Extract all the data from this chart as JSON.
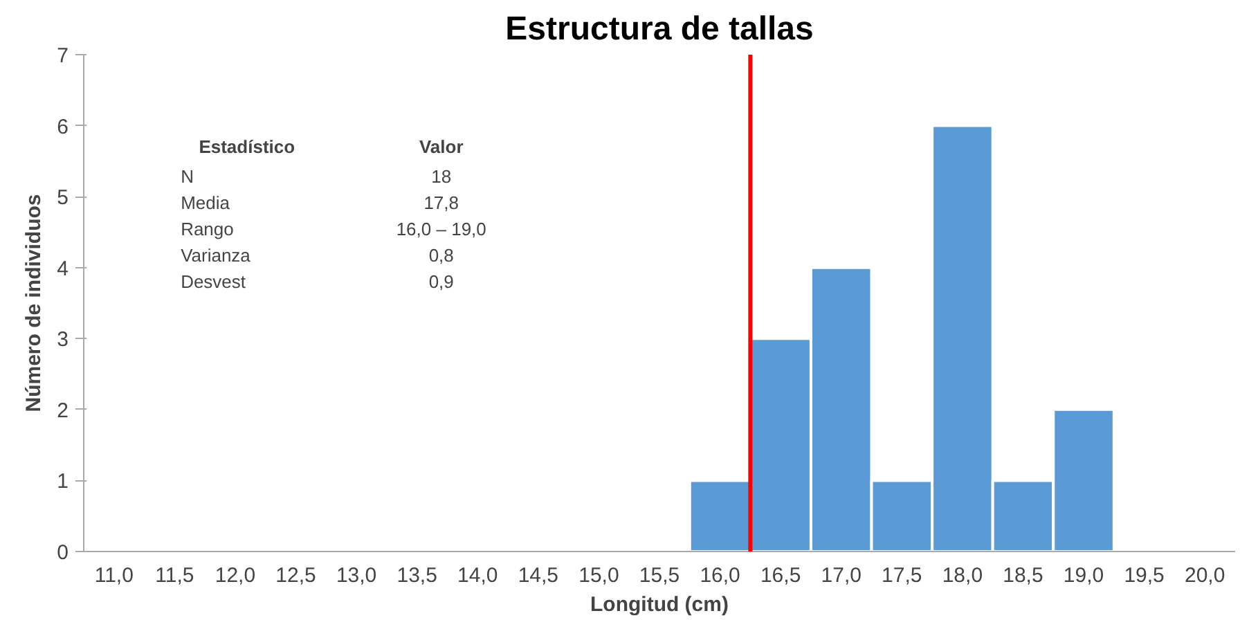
{
  "chart_data": {
    "type": "bar",
    "title": "Estructura de tallas",
    "xlabel": "Longitud (cm)",
    "ylabel": "Número de individuos",
    "x": [
      16.0,
      16.5,
      17.0,
      17.5,
      18.0,
      18.5,
      19.0
    ],
    "values": [
      1,
      3,
      4,
      1,
      6,
      1,
      2
    ],
    "color": "#5b9bd5",
    "xlim": [
      10.75,
      20.25
    ],
    "xticks": [
      {
        "value": 11.0,
        "label": "11,0"
      },
      {
        "value": 11.5,
        "label": "11,5"
      },
      {
        "value": 12.0,
        "label": "12,0"
      },
      {
        "value": 12.5,
        "label": "12,5"
      },
      {
        "value": 13.0,
        "label": "13,0"
      },
      {
        "value": 13.5,
        "label": "13,5"
      },
      {
        "value": 14.0,
        "label": "14,0"
      },
      {
        "value": 14.5,
        "label": "14,5"
      },
      {
        "value": 15.0,
        "label": "15,0"
      },
      {
        "value": 15.5,
        "label": "15,5"
      },
      {
        "value": 16.0,
        "label": "16,0"
      },
      {
        "value": 16.5,
        "label": "16,5"
      },
      {
        "value": 17.0,
        "label": "17,0"
      },
      {
        "value": 17.5,
        "label": "17,5"
      },
      {
        "value": 18.0,
        "label": "18,0"
      },
      {
        "value": 18.5,
        "label": "18,5"
      },
      {
        "value": 19.0,
        "label": "19,0"
      },
      {
        "value": 19.5,
        "label": "19,5"
      },
      {
        "value": 20.0,
        "label": "20,0"
      }
    ],
    "ylim": [
      0,
      7
    ],
    "yticks": [
      0,
      1,
      2,
      3,
      4,
      5,
      6,
      7
    ],
    "grid": false,
    "ref_lines": [
      {
        "axis": "x",
        "value": 16.25,
        "color": "#ff0000"
      }
    ],
    "annotations": [
      "Estadístico",
      "Valor",
      "N",
      "18",
      "Media",
      "17,8",
      "Rango",
      "16,0 – 19,0",
      "Varianza",
      "0,8",
      "Desvest",
      "0,9"
    ]
  }
}
